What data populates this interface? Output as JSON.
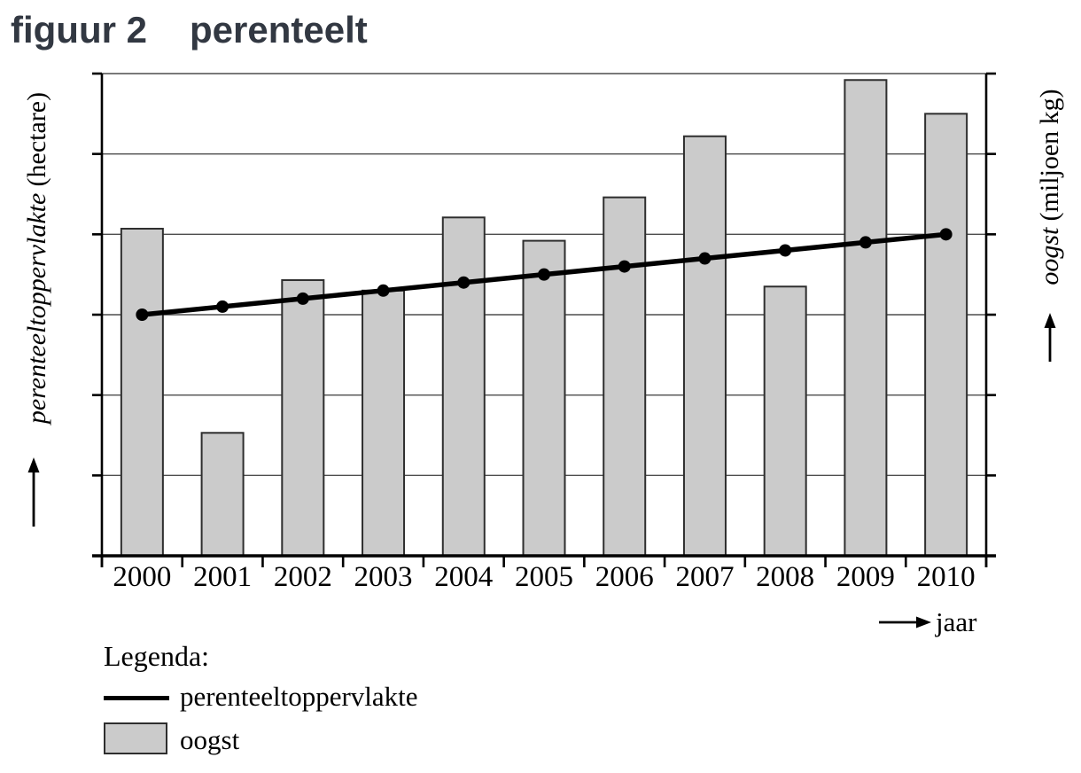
{
  "figure": {
    "label": "figuur 2",
    "title": "perenteelt"
  },
  "axes": {
    "left": {
      "label_italic": "perenteeltoppervlakte",
      "label_roman": "(hectare)"
    },
    "right": {
      "label_italic": "oogst",
      "label_roman": "(miljoen kg)"
    },
    "x": {
      "label": "jaar"
    }
  },
  "legend": {
    "title": "Legenda:",
    "items": [
      {
        "label": "perenteeltoppervlakte",
        "swatch": "line"
      },
      {
        "label": "oogst",
        "swatch": "bar"
      }
    ]
  },
  "colors": {
    "bar_fill": "#cbcbcb",
    "bar_border": "#2e2e2e",
    "line": "#000000",
    "grid": "#4d4d4d",
    "axis": "#000000",
    "title": "#323842"
  },
  "chart_data": {
    "type": "bar",
    "subtype": "combo-bar-line-dual-axis",
    "title": "figuur 2  perenteelt",
    "categories": [
      "2000",
      "2001",
      "2002",
      "2003",
      "2004",
      "2005",
      "2006",
      "2007",
      "2008",
      "2009",
      "2010"
    ],
    "series": [
      {
        "name": "oogst",
        "type": "bar",
        "axis": "right",
        "axis_unit": "miljoen kg",
        "values": [
          4.07,
          1.53,
          3.43,
          3.3,
          4.21,
          3.92,
          4.46,
          5.22,
          3.35,
          5.92,
          5.5
        ]
      },
      {
        "name": "perenteeltoppervlakte",
        "type": "line",
        "axis": "left",
        "axis_unit": "hectare",
        "values": [
          3.0,
          3.1,
          3.2,
          3.3,
          3.4,
          3.5,
          3.6,
          3.7,
          3.8,
          3.9,
          4.0
        ]
      }
    ],
    "xlabel": "jaar",
    "ylabel_left": "perenteeltoppervlakte (hectare)",
    "ylabel_right": "oogst (miljoen kg)",
    "ylim": [
      0,
      6
    ],
    "value_note": "axes have tick marks but no printed numbers; values are in gridline units (1 unit = 1 gridline interval, 6 intervals total)",
    "grid": "horizontal",
    "legend_position": "below-left"
  }
}
